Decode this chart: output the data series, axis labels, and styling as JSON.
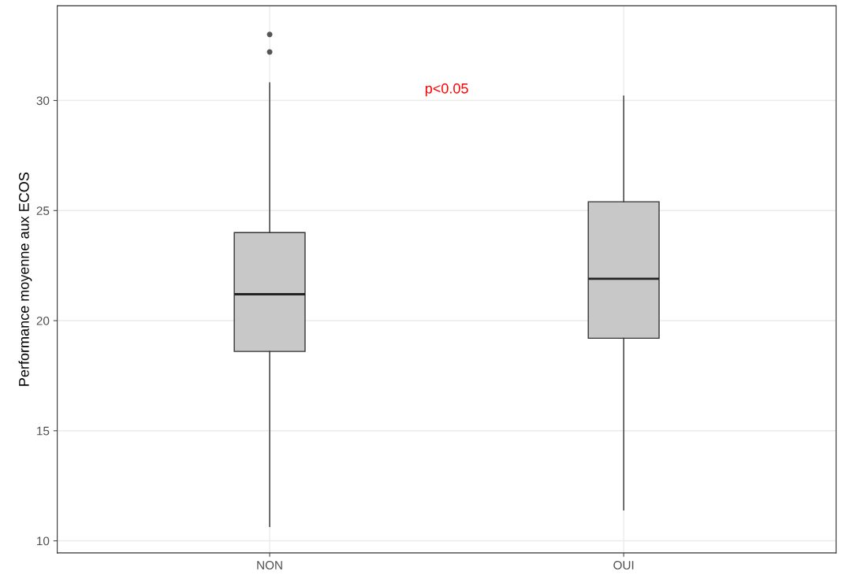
{
  "chart_data": {
    "type": "box",
    "ylabel": "Performance moyenne aux ECOS",
    "categories": [
      "NON",
      "OUI"
    ],
    "boxes": [
      {
        "low": 10.65,
        "q1": 18.6,
        "median": 21.2,
        "q3": 24.0,
        "high": 30.8,
        "outliers": [
          32.2,
          33.0
        ]
      },
      {
        "low": 11.4,
        "q1": 19.2,
        "median": 21.9,
        "q3": 25.4,
        "high": 30.2
      }
    ],
    "color": "#c8c8c8",
    "ylim": [
      9.45,
      34.3
    ],
    "yticks": [
      10,
      15,
      20,
      25,
      30
    ],
    "grid": true,
    "annotations": [
      "p<0.05"
    ]
  }
}
